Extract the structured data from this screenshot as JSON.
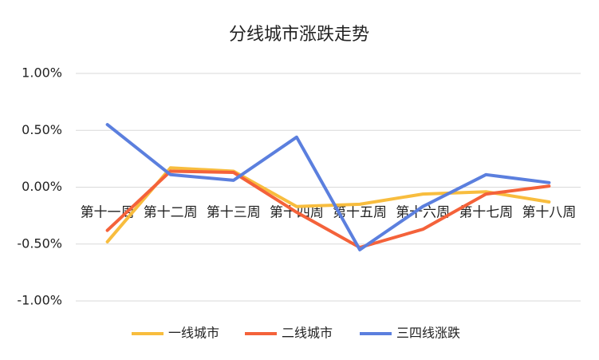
{
  "chart_data": {
    "type": "line",
    "title": "分线城市涨跌走势",
    "categories": [
      "第十一周",
      "第十二周",
      "第十三周",
      "第十四周",
      "第十五周",
      "第十六周",
      "第十七周",
      "第十八周"
    ],
    "series": [
      {
        "name": "一线城市",
        "color": "#f8bd3e",
        "values": [
          -0.48,
          0.17,
          0.14,
          -0.17,
          -0.15,
          -0.06,
          -0.04,
          -0.13
        ]
      },
      {
        "name": "二线城市",
        "color": "#f4623a",
        "values": [
          -0.38,
          0.14,
          0.13,
          -0.22,
          -0.53,
          -0.37,
          -0.06,
          0.01
        ]
      },
      {
        "name": "三四线涨跌",
        "color": "#5b7fde",
        "values": [
          0.55,
          0.11,
          0.06,
          0.44,
          -0.55,
          -0.17,
          0.11,
          0.04
        ]
      }
    ],
    "ylim": [
      -1,
      1
    ],
    "yticks": [
      {
        "value": 1,
        "label": "1.00%"
      },
      {
        "value": 0.5,
        "label": "0.50%"
      },
      {
        "value": 0,
        "label": "0.00%"
      },
      {
        "value": -0.5,
        "label": "-0.50%"
      },
      {
        "value": -1,
        "label": "-1.00%"
      }
    ],
    "grid": true
  }
}
